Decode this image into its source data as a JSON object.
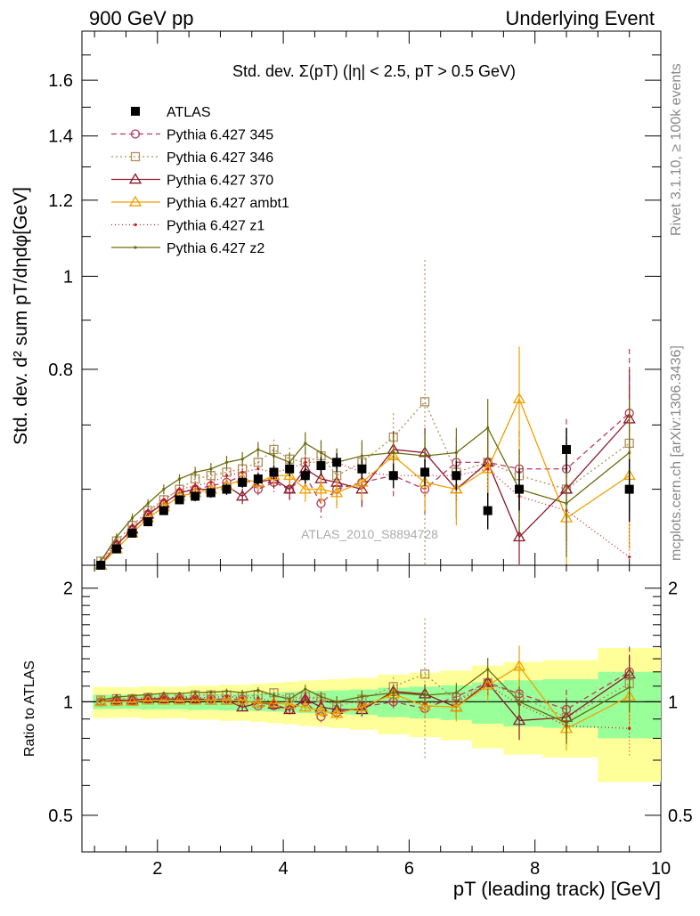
{
  "header": {
    "left": "900 GeV pp",
    "right": "Underlying Event",
    "side_top": "Rivet 3.1.10, ≥ 100k events",
    "side_bottom": "mcplots.cern.ch [arXiv:1306.3436]",
    "watermark": "ATLAS_2010_S8894728"
  },
  "chart_data": {
    "type": "scatter",
    "title": "Std. dev. Σ(pT) (|η| < 2.5, pT > 0.5 GeV)",
    "xlabel": "pT (leading track) [GeV]",
    "ylabel": "Std. dev. d² sum pT/dηdφ[GeV]",
    "ratio_ylabel": "Ratio to ATLAS",
    "xlim": [
      0.8,
      10.0
    ],
    "ylim_log": [
      0.5,
      1.8
    ],
    "ratio_ylim_log": [
      0.4,
      2.3
    ],
    "x_ticks": [
      "2",
      "4",
      "6",
      "8",
      "10"
    ],
    "y_ticks": [
      "0.8",
      "1",
      "1.2",
      "1.4",
      "1.6"
    ],
    "ratio_y_ticks": [
      "0.5",
      "1",
      "2"
    ],
    "legend_position": "top-left",
    "x": [
      1.1,
      1.35,
      1.6,
      1.85,
      2.1,
      2.35,
      2.6,
      2.85,
      3.1,
      3.35,
      3.6,
      3.85,
      4.1,
      4.35,
      4.6,
      4.85,
      5.25,
      5.75,
      6.25,
      6.75,
      7.25,
      7.75,
      8.5,
      9.5
    ],
    "data": {
      "name": "ATLAS",
      "values": [
        0.5,
        0.52,
        0.54,
        0.555,
        0.57,
        0.585,
        0.59,
        0.595,
        0.6,
        0.61,
        0.615,
        0.625,
        0.63,
        0.62,
        0.635,
        0.64,
        0.63,
        0.62,
        0.625,
        0.62,
        0.57,
        0.6,
        0.66,
        0.6
      ],
      "errors": [
        0.005,
        0.005,
        0.005,
        0.006,
        0.006,
        0.006,
        0.007,
        0.007,
        0.008,
        0.008,
        0.009,
        0.01,
        0.011,
        0.012,
        0.013,
        0.014,
        0.015,
        0.018,
        0.02,
        0.022,
        0.025,
        0.03,
        0.035,
        0.045
      ]
    },
    "series": [
      {
        "name": "Pythia 6.427 345",
        "color": "#b53c5c",
        "dash": "6,4",
        "marker": "circle",
        "values": [
          0.5,
          0.525,
          0.545,
          0.565,
          0.58,
          0.595,
          0.6,
          0.605,
          0.61,
          0.62,
          0.6,
          0.61,
          0.6,
          0.62,
          0.58,
          0.6,
          0.61,
          0.62,
          0.6,
          0.64,
          0.64,
          0.63,
          0.63,
          0.72
        ],
        "errors": [
          0.005,
          0.005,
          0.006,
          0.006,
          0.007,
          0.007,
          0.008,
          0.009,
          0.01,
          0.011,
          0.012,
          0.014,
          0.015,
          0.018,
          0.02,
          0.022,
          0.025,
          0.03,
          0.035,
          0.04,
          0.05,
          0.06,
          0.08,
          0.12
        ]
      },
      {
        "name": "Pythia 6.427 346",
        "color": "#b08f5c",
        "dash": "2,3",
        "marker": "square",
        "values": [
          0.505,
          0.53,
          0.55,
          0.57,
          0.585,
          0.6,
          0.615,
          0.62,
          0.625,
          0.63,
          0.64,
          0.66,
          0.645,
          0.64,
          0.65,
          0.62,
          0.64,
          0.68,
          0.74,
          0.625,
          0.64,
          0.62,
          0.6,
          0.67
        ],
        "errors": [
          0.005,
          0.006,
          0.006,
          0.007,
          0.007,
          0.008,
          0.009,
          0.01,
          0.011,
          0.012,
          0.014,
          0.016,
          0.018,
          0.02,
          0.022,
          0.025,
          0.03,
          0.04,
          0.3,
          0.05,
          0.06,
          0.07,
          0.08,
          0.1
        ]
      },
      {
        "name": "Pythia 6.427 370",
        "color": "#8b1a2e",
        "dash": "",
        "marker": "triangle",
        "values": [
          0.5,
          0.525,
          0.545,
          0.565,
          0.58,
          0.595,
          0.6,
          0.6,
          0.605,
          0.59,
          0.61,
          0.615,
          0.6,
          0.63,
          0.615,
          0.61,
          0.6,
          0.66,
          0.655,
          0.6,
          0.64,
          0.535,
          0.6,
          0.71
        ],
        "errors": [
          0.005,
          0.005,
          0.006,
          0.006,
          0.007,
          0.007,
          0.008,
          0.009,
          0.01,
          0.011,
          0.012,
          0.014,
          0.015,
          0.018,
          0.02,
          0.022,
          0.025,
          0.03,
          0.04,
          0.04,
          0.05,
          0.06,
          0.07,
          0.09
        ]
      },
      {
        "name": "Pythia 6.427 ambt1",
        "color": "#f0a000",
        "dash": "",
        "marker": "triangle",
        "values": [
          0.5,
          0.52,
          0.54,
          0.56,
          0.575,
          0.59,
          0.595,
          0.6,
          0.605,
          0.615,
          0.61,
          0.62,
          0.62,
          0.6,
          0.6,
          0.595,
          0.61,
          0.65,
          0.61,
          0.6,
          0.63,
          0.745,
          0.56,
          0.62
        ],
        "errors": [
          0.005,
          0.005,
          0.006,
          0.006,
          0.007,
          0.007,
          0.008,
          0.009,
          0.01,
          0.011,
          0.012,
          0.014,
          0.015,
          0.018,
          0.02,
          0.022,
          0.025,
          0.03,
          0.04,
          0.05,
          0.06,
          0.1,
          0.07,
          0.1
        ]
      },
      {
        "name": "Pythia 6.427 z1",
        "color": "#cc2020",
        "dash": "1,3",
        "marker": "dot",
        "values": [
          0.505,
          0.525,
          0.545,
          0.565,
          0.585,
          0.6,
          0.605,
          0.61,
          0.62,
          0.625,
          0.63,
          0.625,
          0.63,
          0.64,
          0.64,
          0.64,
          0.625,
          0.62,
          0.62,
          0.62,
          0.63,
          0.59,
          0.57,
          0.51
        ],
        "errors": [
          0.004,
          0.004,
          0.005,
          0.005,
          0.006,
          0.006,
          0.007,
          0.008,
          0.009,
          0.01,
          0.011,
          0.012,
          0.013,
          0.015,
          0.017,
          0.02,
          0.022,
          0.025,
          0.03,
          0.035,
          0.04,
          0.05,
          0.06,
          0.08
        ]
      },
      {
        "name": "Pythia 6.427 z2",
        "color": "#6b6b10",
        "dash": "",
        "marker": "dot",
        "values": [
          0.505,
          0.535,
          0.56,
          0.58,
          0.6,
          0.615,
          0.625,
          0.63,
          0.64,
          0.645,
          0.66,
          0.65,
          0.64,
          0.67,
          0.655,
          0.64,
          0.65,
          0.655,
          0.65,
          0.655,
          0.695,
          0.6,
          0.58,
          0.655
        ],
        "errors": [
          0.005,
          0.005,
          0.006,
          0.006,
          0.007,
          0.007,
          0.008,
          0.009,
          0.01,
          0.011,
          0.012,
          0.014,
          0.015,
          0.018,
          0.02,
          0.022,
          0.025,
          0.03,
          0.035,
          0.04,
          0.05,
          0.06,
          0.07,
          0.09
        ]
      }
    ]
  }
}
